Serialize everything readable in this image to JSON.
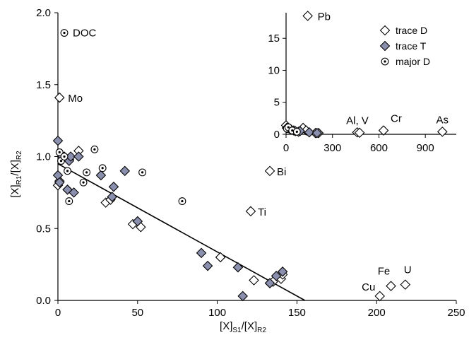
{
  "chart_data": [
    {
      "id": "main",
      "type": "scatter",
      "xlim": [
        0,
        250
      ],
      "ylim": [
        0,
        2.0
      ],
      "x_ticks": [
        "0",
        "50",
        "100",
        "150",
        "200",
        "250"
      ],
      "y_ticks": [
        "0.0",
        "0.5",
        "1.0",
        "1.5",
        "2.0"
      ],
      "xlabel": {
        "a": "[X]",
        "sub1": "S1",
        "b": "/[X]",
        "sub2": "R2"
      },
      "ylabel": {
        "a": "[X]",
        "sub1": "R1",
        "b": "/[X]",
        "sub2": "R2"
      },
      "regression_line": {
        "x": [
          0,
          155
        ],
        "y": [
          0.95,
          0.0
        ]
      },
      "series": [
        {
          "name": "trace D",
          "marker": "diamond-open",
          "points": [
            [
              0,
              0.8
            ],
            [
              1,
              0.83
            ],
            [
              4,
              1.0
            ],
            [
              7,
              0.98
            ],
            [
              13,
              1.04
            ],
            [
              30,
              0.68
            ],
            [
              33,
              0.7
            ],
            [
              47,
              0.53
            ],
            [
              52,
              0.51
            ],
            [
              102,
              0.3
            ],
            [
              123,
              0.14
            ],
            [
              133,
              0.12
            ],
            [
              135,
              0.13
            ],
            [
              140,
              0.15
            ],
            [
              141,
              0.18
            ],
            [
              1,
              1.41
            ],
            [
              133,
              0.9
            ],
            [
              121,
              0.62
            ],
            [
              202,
              0.03
            ],
            [
              209,
              0.1
            ],
            [
              218,
              0.11
            ]
          ]
        },
        {
          "name": "trace T",
          "marker": "diamond-filled",
          "points": [
            [
              0,
              1.11
            ],
            [
              0,
              0.87
            ],
            [
              1,
              0.82
            ],
            [
              3,
              1.0
            ],
            [
              6,
              0.77
            ],
            [
              7,
              0.97
            ],
            [
              8,
              1.0
            ],
            [
              10,
              0.75
            ],
            [
              13,
              1.0
            ],
            [
              27,
              0.87
            ],
            [
              34,
              0.72
            ],
            [
              35,
              0.79
            ],
            [
              42,
              0.9
            ],
            [
              50,
              0.55
            ],
            [
              90,
              0.33
            ],
            [
              94,
              0.24
            ],
            [
              113,
              0.23
            ],
            [
              116,
              0.03
            ],
            [
              133,
              0.12
            ],
            [
              137,
              0.17
            ],
            [
              141,
              0.2
            ]
          ]
        },
        {
          "name": "major D",
          "marker": "circle-dot",
          "points": [
            [
              4,
              1.86
            ],
            [
              1,
              1.03
            ],
            [
              2,
              0.97
            ],
            [
              4,
              1.0
            ],
            [
              6,
              0.9
            ],
            [
              7,
              0.69
            ],
            [
              16,
              0.82
            ],
            [
              18,
              0.89
            ],
            [
              23,
              1.05
            ],
            [
              28,
              0.92
            ],
            [
              53,
              0.89
            ],
            [
              78,
              0.69
            ]
          ]
        }
      ],
      "annotations": [
        {
          "text": "DOC",
          "x": 4,
          "y": 1.86
        },
        {
          "text": "Mo",
          "x": 1,
          "y": 1.41
        },
        {
          "text": "Bi",
          "x": 133,
          "y": 0.9
        },
        {
          "text": "Ti",
          "x": 121,
          "y": 0.62
        },
        {
          "text": "Cu",
          "x": 202,
          "y": 0.03
        },
        {
          "text": "Fe",
          "x": 209,
          "y": 0.1
        },
        {
          "text": "U",
          "x": 218,
          "y": 0.11
        }
      ]
    },
    {
      "id": "inset",
      "type": "scatter",
      "xlim": [
        0,
        1100
      ],
      "ylim": [
        0,
        19
      ],
      "x_ticks": [
        "0",
        "300",
        "600",
        "900"
      ],
      "y_ticks": [
        "0",
        "5",
        "10",
        "15"
      ],
      "series": [
        {
          "name": "trace D",
          "marker": "diamond-open",
          "points": [
            [
              0,
              1.4
            ],
            [
              10,
              1.0
            ],
            [
              30,
              0.8
            ],
            [
              50,
              0.6
            ],
            [
              80,
              0.4
            ],
            [
              110,
              1.0
            ],
            [
              130,
              0.6
            ],
            [
              190,
              0.2
            ],
            [
              210,
              0.2
            ],
            [
              460,
              0.3
            ],
            [
              475,
              0.25
            ],
            [
              630,
              0.6
            ],
            [
              1010,
              0.4
            ],
            [
              140,
              18.5
            ]
          ]
        },
        {
          "name": "trace T",
          "marker": "diamond-filled",
          "points": [
            [
              5,
              1.0
            ],
            [
              20,
              0.9
            ],
            [
              60,
              0.5
            ],
            [
              90,
              0.5
            ],
            [
              150,
              0.3
            ],
            [
              200,
              0.2
            ]
          ]
        },
        {
          "name": "major D",
          "marker": "circle-dot",
          "points": [
            [
              5,
              0.9
            ],
            [
              15,
              1.1
            ],
            [
              40,
              0.6
            ],
            [
              70,
              0.4
            ]
          ]
        }
      ],
      "annotations": [
        {
          "text": "Pb",
          "x": 140,
          "y": 18.5
        },
        {
          "text": "Al, V",
          "x": 470,
          "y": 0.3
        },
        {
          "text": "Cr",
          "x": 630,
          "y": 0.6
        },
        {
          "text": "As",
          "x": 1010,
          "y": 0.4
        }
      ]
    }
  ],
  "legend": {
    "placement": "top-right",
    "items": [
      {
        "label": "trace D",
        "marker": "diamond-open"
      },
      {
        "label": "trace T",
        "marker": "diamond-filled"
      },
      {
        "label": "major D",
        "marker": "circle-dot"
      }
    ]
  },
  "colors": {
    "filled_marker": "#8b8fae",
    "marker_stroke": "#000000",
    "open_fill": "#ffffff"
  }
}
